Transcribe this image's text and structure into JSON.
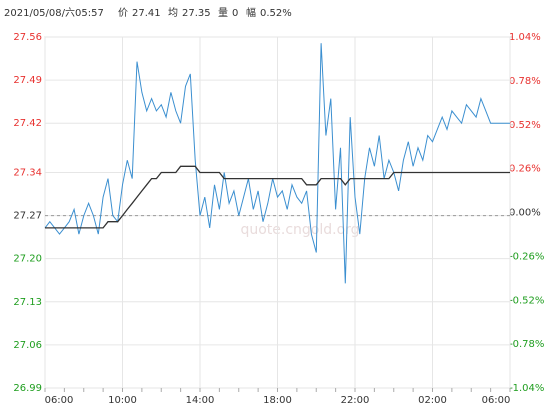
{
  "chart_data": {
    "type": "line",
    "header": {
      "datetime": "2021/05/08/六05:57",
      "price_label": "价",
      "price": 27.41,
      "avg_label": "均",
      "avg": 27.35,
      "volume_label": "量",
      "volume": 0,
      "range_label": "幅",
      "range": {
        "value": 0.52,
        "label": "0.52%"
      }
    },
    "watermark": "quote.cngold.org",
    "categories": [
      "06:00",
      null,
      null,
      null,
      null,
      null,
      null,
      null,
      null,
      null,
      null,
      null,
      null,
      null,
      null,
      null,
      "10:00",
      null,
      null,
      null,
      null,
      null,
      null,
      null,
      null,
      null,
      null,
      null,
      null,
      null,
      null,
      null,
      "14:00",
      null,
      null,
      null,
      null,
      null,
      null,
      null,
      null,
      null,
      null,
      null,
      null,
      null,
      null,
      null,
      "18:00",
      null,
      null,
      null,
      null,
      null,
      null,
      null,
      null,
      null,
      null,
      null,
      null,
      null,
      null,
      null,
      "22:00",
      null,
      null,
      null,
      null,
      null,
      null,
      null,
      null,
      null,
      null,
      null,
      null,
      null,
      null,
      null,
      "02:00",
      null,
      null,
      null,
      null,
      null,
      null,
      null,
      null,
      null,
      null,
      null,
      null,
      null,
      null,
      null,
      "06:00"
    ],
    "series": [
      {
        "name": "价",
        "color": "#3b8fd0",
        "values": [
          27.25,
          27.26,
          27.25,
          27.24,
          27.25,
          27.26,
          27.28,
          27.24,
          27.27,
          27.29,
          27.27,
          27.24,
          27.3,
          27.33,
          27.27,
          27.26,
          27.32,
          27.36,
          27.33,
          27.52,
          27.47,
          27.44,
          27.46,
          27.44,
          27.45,
          27.43,
          27.47,
          27.44,
          27.42,
          27.48,
          27.5,
          27.36,
          27.27,
          27.3,
          27.25,
          27.32,
          27.28,
          27.34,
          27.29,
          27.31,
          27.27,
          27.3,
          27.33,
          27.28,
          27.31,
          27.26,
          27.29,
          27.33,
          27.3,
          27.31,
          27.28,
          27.32,
          27.3,
          27.29,
          27.31,
          27.24,
          27.21,
          27.55,
          27.4,
          27.46,
          27.28,
          27.38,
          27.16,
          27.43,
          27.3,
          27.24,
          27.33,
          27.38,
          27.35,
          27.4,
          27.33,
          27.36,
          27.34,
          27.31,
          27.36,
          27.39,
          27.35,
          27.38,
          27.36,
          27.4,
          27.39,
          27.41,
          27.43,
          27.41,
          27.44,
          27.43,
          27.42,
          27.45,
          27.44,
          27.43,
          27.46,
          27.44,
          27.42,
          27.42,
          27.42,
          27.42,
          27.42
        ]
      },
      {
        "name": "均",
        "color": "#333333",
        "values": [
          27.25,
          27.25,
          27.25,
          27.25,
          27.25,
          27.25,
          27.25,
          27.25,
          27.25,
          27.25,
          27.25,
          27.25,
          27.25,
          27.26,
          27.26,
          27.26,
          27.27,
          27.28,
          27.29,
          27.3,
          27.31,
          27.32,
          27.33,
          27.33,
          27.34,
          27.34,
          27.34,
          27.34,
          27.35,
          27.35,
          27.35,
          27.35,
          27.34,
          27.34,
          27.34,
          27.34,
          27.34,
          27.33,
          27.33,
          27.33,
          27.33,
          27.33,
          27.33,
          27.33,
          27.33,
          27.33,
          27.33,
          27.33,
          27.33,
          27.33,
          27.33,
          27.33,
          27.33,
          27.33,
          27.32,
          27.32,
          27.32,
          27.33,
          27.33,
          27.33,
          27.33,
          27.33,
          27.32,
          27.33,
          27.33,
          27.33,
          27.33,
          27.33,
          27.33,
          27.33,
          27.33,
          27.33,
          27.34,
          27.34,
          27.34,
          27.34,
          27.34,
          27.34,
          27.34,
          27.34,
          27.34,
          27.34,
          27.34,
          27.34,
          27.34,
          27.34,
          27.34,
          27.34,
          27.34,
          27.34,
          27.34,
          27.34,
          27.34,
          27.34,
          27.34,
          27.34,
          27.34
        ]
      }
    ],
    "reference_line": 27.27,
    "ylim": [
      26.99,
      27.56
    ],
    "yticks": [
      26.99,
      27.06,
      27.13,
      {
        "value": 27.2,
        "label": "27.20"
      },
      27.27,
      27.34,
      27.42,
      27.49,
      27.56
    ],
    "y2lim": [
      -1.04,
      1.04
    ],
    "y2ticks": [
      {
        "value": -1.04,
        "label": "-1.04%"
      },
      {
        "value": -0.78,
        "label": "-0.78%"
      },
      {
        "value": -0.52,
        "label": "-0.52%"
      },
      {
        "value": -0.26,
        "label": "-0.26%"
      },
      {
        "value": 0,
        "label": "0.00%"
      },
      {
        "value": 0.26,
        "label": "0.26%"
      },
      {
        "value": 0.52,
        "label": "0.52%"
      },
      {
        "value": 0.78,
        "label": "0.78%"
      },
      {
        "value": 1.04,
        "label": "1.04%"
      }
    ],
    "up_color": "#e8312f",
    "down_color": "#1f9e1f",
    "flat_color": "#333333",
    "grid": true
  }
}
